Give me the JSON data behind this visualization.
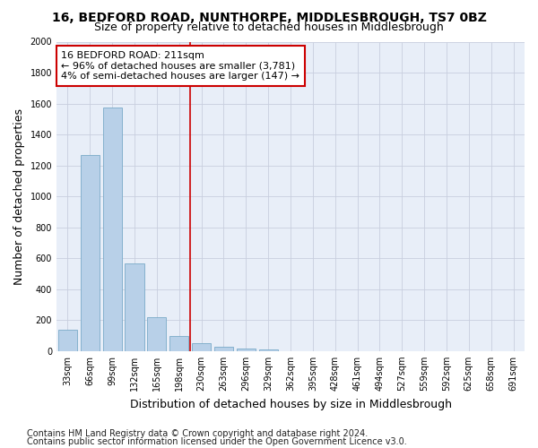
{
  "title": "16, BEDFORD ROAD, NUNTHORPE, MIDDLESBROUGH, TS7 0BZ",
  "subtitle": "Size of property relative to detached houses in Middlesbrough",
  "xlabel": "Distribution of detached houses by size in Middlesbrough",
  "ylabel": "Number of detached properties",
  "footnote1": "Contains HM Land Registry data © Crown copyright and database right 2024.",
  "footnote2": "Contains public sector information licensed under the Open Government Licence v3.0.",
  "annotation_title": "16 BEDFORD ROAD: 211sqm",
  "annotation_line2": "← 96% of detached houses are smaller (3,781)",
  "annotation_line3": "4% of semi-detached houses are larger (147) →",
  "bar_labels": [
    "33sqm",
    "66sqm",
    "99sqm",
    "132sqm",
    "165sqm",
    "198sqm",
    "230sqm",
    "263sqm",
    "296sqm",
    "329sqm",
    "362sqm",
    "395sqm",
    "428sqm",
    "461sqm",
    "494sqm",
    "527sqm",
    "559sqm",
    "592sqm",
    "625sqm",
    "658sqm",
    "691sqm"
  ],
  "bar_values": [
    140,
    1265,
    1575,
    565,
    220,
    95,
    50,
    30,
    18,
    8,
    0,
    0,
    0,
    0,
    0,
    0,
    0,
    0,
    0,
    0,
    0
  ],
  "bar_color": "#b8d0e8",
  "bar_edge_color": "#7aaac8",
  "annotation_box_color": "#cc0000",
  "red_line_x": 6,
  "background_color": "#e8eef8",
  "grid_color": "#c8cede",
  "ylim": [
    0,
    2000
  ],
  "yticks": [
    0,
    200,
    400,
    600,
    800,
    1000,
    1200,
    1400,
    1600,
    1800,
    2000
  ],
  "title_fontsize": 10,
  "subtitle_fontsize": 9,
  "axis_label_fontsize": 9,
  "tick_fontsize": 7,
  "annotation_fontsize": 8,
  "footnote_fontsize": 7
}
